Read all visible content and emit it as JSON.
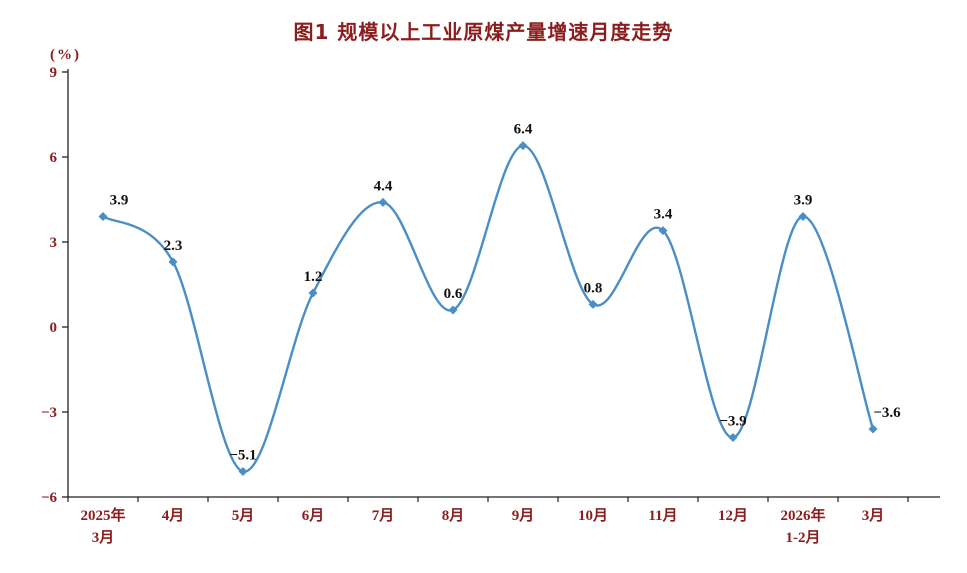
{
  "chart_data": {
    "type": "line",
    "title": "图1 规模以上工业原煤产量增速月度走势",
    "unit": "(%)",
    "categories": [
      [
        "2025年",
        "3月"
      ],
      [
        "4月"
      ],
      [
        "5月"
      ],
      [
        "6月"
      ],
      [
        "7月"
      ],
      [
        "8月"
      ],
      [
        "9月"
      ],
      [
        "10月"
      ],
      [
        "11月"
      ],
      [
        "12月"
      ],
      [
        "2026年",
        "1-2月"
      ],
      [
        "3月"
      ]
    ],
    "values": [
      3.9,
      2.3,
      -5.1,
      1.2,
      4.4,
      0.6,
      6.4,
      0.8,
      3.4,
      -3.9,
      3.9,
      -3.6
    ],
    "labels": [
      "3.9",
      "2.3",
      "−5.1",
      "1.2",
      "4.4",
      "0.6",
      "6.4",
      "0.8",
      "3.4",
      "−3.9",
      "3.9",
      "−3.6"
    ],
    "ylim": [
      -6,
      9
    ],
    "yticks": [
      9,
      6,
      3,
      0,
      -3,
      -6
    ],
    "ytick_labels": [
      "9",
      "6",
      "3",
      "0",
      "−3",
      "−6"
    ],
    "grid": false,
    "legend": false,
    "xlabel": "",
    "ylabel": "(%)",
    "line_color": "#4a8ec5",
    "axis_color": "#222222",
    "axis_text_color": "#8b1d1d",
    "title_color": "#8b1d1d",
    "label_color": "#111111"
  }
}
